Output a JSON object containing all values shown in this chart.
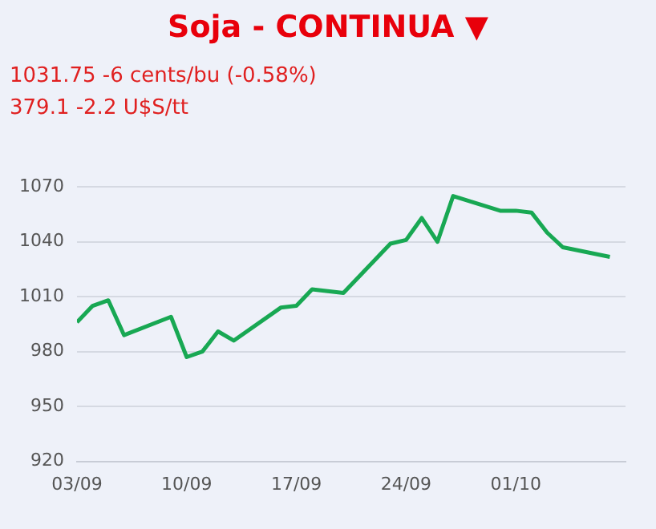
{
  "chart_data": {
    "type": "line",
    "title": "Soja - CONTINUA ▼",
    "subtitle": "1031.75 -6 cents/bu (-0.58%)",
    "annotations": [
      "379.1 -2.2 U$S/tt"
    ],
    "x": [
      "--09-03",
      "--09-04",
      "--09-05",
      "--09-06",
      "--09-09",
      "--09-10",
      "--09-11",
      "--09-12",
      "--09-13",
      "--09-16",
      "--09-17",
      "--09-18",
      "--09-20",
      "--09-23",
      "--09-24",
      "--09-25",
      "--09-26",
      "--09-27",
      "--09-30",
      "--10-01",
      "--10-02",
      "--10-03",
      "--10-04",
      "--10-07"
    ],
    "series": [
      {
        "color": "#18a853",
        "values": [
          996,
          1005,
          1008,
          989,
          999,
          977,
          980,
          991,
          986,
          1004,
          1005,
          1014,
          1012,
          1039,
          1041,
          1053,
          1040,
          1065,
          1057,
          1057,
          1056,
          1045,
          1037,
          1031.75
        ]
      }
    ],
    "xlim": [
      "--09-03",
      "--10-08"
    ],
    "xticks": [
      {
        "value": "--09-03",
        "label": "03/09"
      },
      {
        "value": "--09-10",
        "label": "10/09"
      },
      {
        "value": "--09-17",
        "label": "17/09"
      },
      {
        "value": "--09-24",
        "label": "24/09"
      },
      {
        "value": "--10-01",
        "label": "01/10"
      }
    ],
    "ylim": [
      920,
      1070
    ],
    "yticks": [
      920,
      950,
      980,
      1010,
      1040,
      1070
    ],
    "grid": "y",
    "legend": false,
    "marker": "none",
    "line_style": "solid"
  }
}
